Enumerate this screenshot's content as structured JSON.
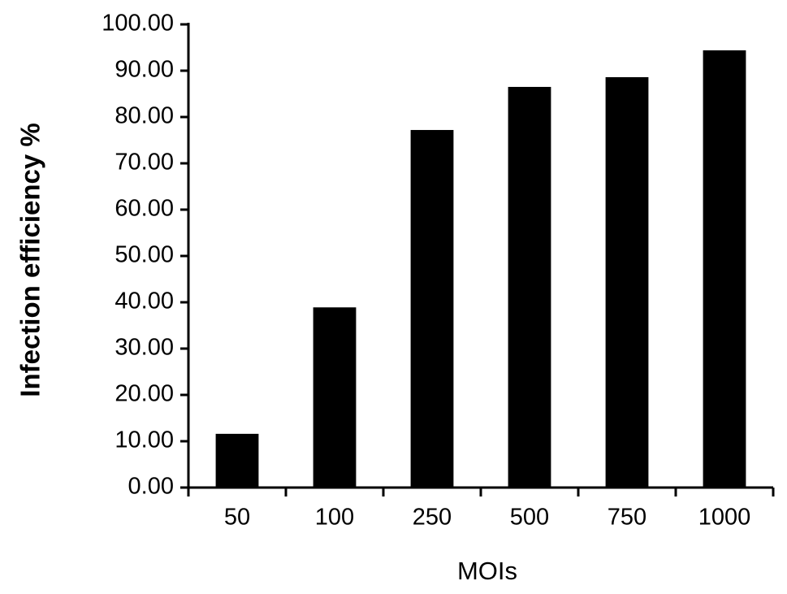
{
  "chart_data": {
    "type": "bar",
    "x_label": "MOIs",
    "y_label": "Infection efficiency %",
    "categories": [
      "50",
      "100",
      "250",
      "500",
      "750",
      "1000"
    ],
    "values": [
      11.6,
      38.9,
      77.2,
      86.5,
      88.6,
      94.4
    ],
    "color": "#000000",
    "ylim": [
      0,
      100
    ],
    "yticks": [
      {
        "value": 0,
        "label": "0.00"
      },
      {
        "value": 10,
        "label": "10.00"
      },
      {
        "value": 20,
        "label": "20.00"
      },
      {
        "value": 30,
        "label": "30.00"
      },
      {
        "value": 40,
        "label": "40.00"
      },
      {
        "value": 50,
        "label": "50.00"
      },
      {
        "value": 60,
        "label": "60.00"
      },
      {
        "value": 70,
        "label": "70.00"
      },
      {
        "value": 80,
        "label": "80.00"
      },
      {
        "value": 90,
        "label": "90.00"
      },
      {
        "value": 100,
        "label": "100.00"
      }
    ],
    "grid": false
  }
}
